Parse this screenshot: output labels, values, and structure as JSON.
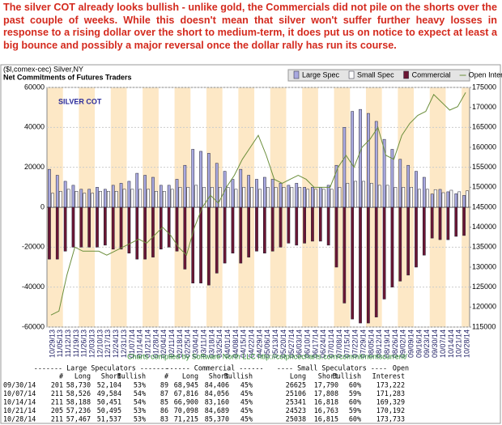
{
  "header": {
    "text": "The silver COT already looks bullish - unlike gold, the Commercials did not pile on the shorts over the past couple of weeks. While this doesn't mean that silver won't suffer further heavy losses in response to a rising dollar over the short to medium-term, it does put us on notice to expect at least a big bounce and possibly a major reversal once the dollar rally has run its course."
  },
  "chart_data": {
    "type": "bar",
    "title": "($I,comex-cec) Silver,NY",
    "subtitle": "Net Commitments of Futures Traders",
    "label": "SILVER COT",
    "source": "Charts compiled by Software North LLC  http://cotpricecharts.com/commitmentscurrent/",
    "categories": [
      "10/29/13",
      "11/05/13",
      "11/12/13",
      "11/19/13",
      "11/26/13",
      "12/03/13",
      "12/10/13",
      "12/17/13",
      "12/24/13",
      "12/31/13",
      "01/07/14",
      "01/14/14",
      "01/21/14",
      "01/28/14",
      "02/04/14",
      "02/11/14",
      "02/18/14",
      "02/25/14",
      "03/04/14",
      "03/11/14",
      "03/18/14",
      "03/25/14",
      "04/01/14",
      "04/08/14",
      "04/15/14",
      "04/22/14",
      "04/29/14",
      "05/06/14",
      "05/13/14",
      "05/20/14",
      "05/27/14",
      "06/03/14",
      "06/10/14",
      "06/17/14",
      "06/24/14",
      "07/01/14",
      "07/08/14",
      "07/15/14",
      "07/22/14",
      "07/29/14",
      "08/05/14",
      "08/12/14",
      "08/19/14",
      "08/26/14",
      "09/02/14",
      "09/09/14",
      "09/16/14",
      "09/23/14",
      "09/30/14",
      "10/07/14",
      "10/14/14",
      "10/21/14",
      "10/28/14"
    ],
    "series": [
      {
        "name": "Large Spec",
        "color": "#a9a9e0",
        "values": [
          19000,
          16000,
          13000,
          11000,
          9000,
          9000,
          10000,
          9000,
          11000,
          12000,
          13000,
          17000,
          16000,
          15000,
          11000,
          11000,
          14000,
          21000,
          29000,
          28000,
          27000,
          22000,
          18000,
          14000,
          19000,
          16000,
          14000,
          15000,
          14000,
          12000,
          11000,
          12000,
          10000,
          10000,
          10000,
          11000,
          21000,
          40000,
          48000,
          49000,
          47000,
          43000,
          34000,
          29000,
          24000,
          21000,
          18000,
          15000,
          6626,
          8942,
          7737,
          6741,
          5930
        ]
      },
      {
        "name": "Small Spec",
        "color": "#ffffff",
        "values": [
          7000,
          8000,
          9000,
          8000,
          7000,
          7000,
          8000,
          8000,
          8000,
          9000,
          9000,
          9000,
          9000,
          8000,
          8000,
          9000,
          10000,
          10000,
          11000,
          10000,
          10000,
          10000,
          10000,
          9000,
          10000,
          10000,
          9000,
          10000,
          10000,
          10000,
          10000,
          10000,
          9000,
          9000,
          9000,
          9000,
          10000,
          12000,
          13000,
          13000,
          12000,
          11000,
          11000,
          10000,
          10000,
          10000,
          9000,
          9000,
          8835,
          7298,
          8523,
          7760,
          8223
        ]
      },
      {
        "name": "Commercial",
        "color": "#6b1634",
        "values": [
          -26000,
          -26000,
          -22000,
          -20000,
          -20000,
          -20000,
          -20000,
          -19000,
          -21000,
          -21000,
          -23000,
          -26000,
          -26000,
          -25000,
          -21000,
          -20000,
          -22000,
          -31000,
          -38000,
          -38000,
          -39000,
          -33000,
          -28000,
          -23000,
          -28000,
          -25000,
          -22000,
          -23000,
          -22000,
          -20000,
          -18000,
          -19000,
          -18000,
          -17000,
          -17000,
          -19000,
          -30000,
          -48000,
          -56000,
          -58000,
          -58000,
          -55000,
          -46000,
          -40000,
          -37000,
          -34000,
          -30000,
          -24000,
          -15461,
          -16240,
          -16260,
          -14591,
          -14155
        ]
      },
      {
        "name": "Open Interest",
        "color": "#6c8f3c",
        "axis": "y2",
        "values": [
          118000,
          119000,
          128000,
          135000,
          134000,
          134000,
          134000,
          133000,
          134000,
          135000,
          136000,
          137000,
          136000,
          138000,
          140000,
          138000,
          135000,
          133000,
          140000,
          145000,
          148000,
          146000,
          150000,
          153000,
          157000,
          160000,
          163000,
          158000,
          152000,
          151000,
          152000,
          153000,
          152000,
          150000,
          150000,
          150000,
          155000,
          158000,
          155000,
          160000,
          162000,
          165000,
          158000,
          157000,
          163000,
          166000,
          168000,
          169000,
          173222,
          171283,
          169329,
          170192,
          173733
        ]
      }
    ],
    "ylim": [
      -60000,
      60000
    ],
    "yticks": [
      -60000,
      -40000,
      -20000,
      0,
      20000,
      40000,
      60000
    ],
    "y2lim": [
      115000,
      175000
    ],
    "y2ticks": [
      115000,
      120000,
      125000,
      130000,
      135000,
      140000,
      145000,
      150000,
      155000,
      160000,
      165000,
      170000,
      175000
    ],
    "grid": true,
    "legend": "top-right"
  },
  "table": {
    "groups": [
      "------- Large Speculators -------",
      "------ Commercial ------",
      "---- Small Speculators ----",
      "Open"
    ],
    "columns": [
      "#",
      "Long",
      "Short",
      "Bullish",
      "#",
      "Long",
      "Short",
      "Bullish",
      "Long",
      "Short",
      "Bullish",
      "Interest"
    ],
    "rows": [
      [
        "09/30/14",
        "201",
        "58,730",
        "52,104",
        "53%",
        "89",
        "68,945",
        "84,406",
        "45%",
        "26625",
        "17,790",
        "60%",
        "173,222"
      ],
      [
        "10/07/14",
        "211",
        "58,526",
        "49,584",
        "54%",
        "87",
        "67,816",
        "84,056",
        "45%",
        "25106",
        "17,808",
        "59%",
        "171,283"
      ],
      [
        "10/14/14",
        "211",
        "58,188",
        "50,451",
        "54%",
        "85",
        "66,900",
        "83,160",
        "45%",
        "25341",
        "16,818",
        "60%",
        "169,329"
      ],
      [
        "10/21/14",
        "205",
        "57,236",
        "50,495",
        "53%",
        "86",
        "70,098",
        "84,689",
        "45%",
        "24523",
        "16,763",
        "59%",
        "170,192"
      ],
      [
        "10/28/14",
        "211",
        "57,467",
        "51,537",
        "53%",
        "83",
        "71,215",
        "85,370",
        "45%",
        "25038",
        "16,815",
        "60%",
        "173,733"
      ]
    ]
  }
}
